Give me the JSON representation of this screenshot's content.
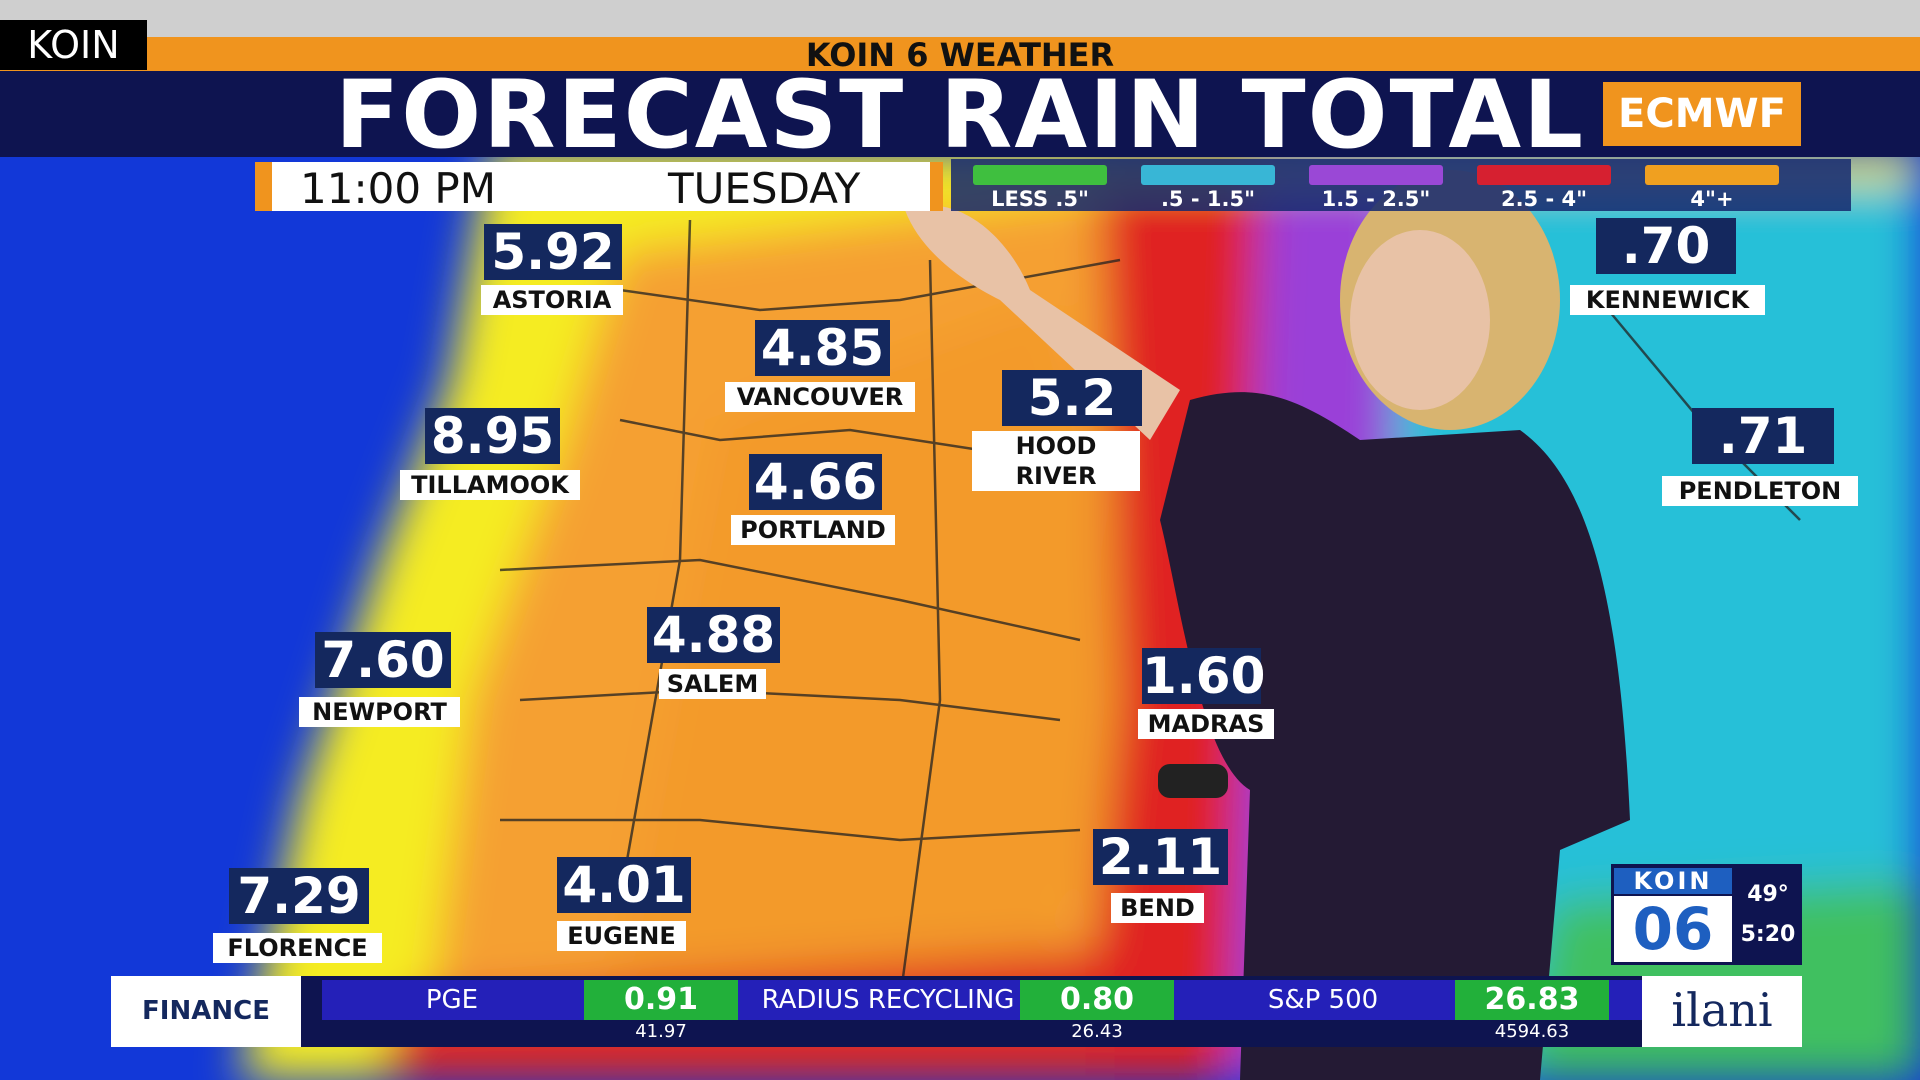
{
  "station": "KOIN",
  "header": {
    "strip": "KOIN 6 WEATHER",
    "title": "FORECAST RAIN TOTAL",
    "model": "ECMWF"
  },
  "timebar": {
    "time": "11:00 PM",
    "day": "TUESDAY"
  },
  "legend": [
    {
      "label": "LESS .5\"",
      "color": "#3fbf3f"
    },
    {
      "label": ".5 - 1.5\"",
      "color": "#38b6d6"
    },
    {
      "label": "1.5 - 2.5\"",
      "color": "#9a48d6"
    },
    {
      "label": "2.5 - 4\"",
      "color": "#d62030"
    },
    {
      "label": "4\"+",
      "color": "#f0a020"
    }
  ],
  "cities": [
    {
      "name": "ASTORIA",
      "value": "5.92"
    },
    {
      "name": "VANCOUVER",
      "value": "4.85"
    },
    {
      "name": "HOOD RIVER",
      "value": "5.2"
    },
    {
      "name": "TILLAMOOK",
      "value": "8.95"
    },
    {
      "name": "PORTLAND",
      "value": "4.66"
    },
    {
      "name": "SALEM",
      "value": "4.88"
    },
    {
      "name": "NEWPORT",
      "value": "7.60"
    },
    {
      "name": "MADRAS",
      "value": "1.60"
    },
    {
      "name": "FLORENCE",
      "value": "7.29"
    },
    {
      "name": "EUGENE",
      "value": "4.01"
    },
    {
      "name": "BEND",
      "value": "2.11"
    },
    {
      "name": "KENNEWICK",
      "value": ".70"
    },
    {
      "name": "PENDLETON",
      "value": ".71"
    }
  ],
  "ticker": {
    "section": "FINANCE",
    "items": [
      {
        "name": "PGE",
        "change": "0.91",
        "price": "41.97"
      },
      {
        "name": "RADIUS RECYCLING",
        "change": "0.80",
        "price": "26.43"
      },
      {
        "name": "S&P 500",
        "change": "26.83",
        "price": "4594.63"
      }
    ],
    "sponsor": "ilani"
  },
  "bug": {
    "brand": "KOIN",
    "channel": "06",
    "temperature": "49°",
    "clock": "5:20"
  }
}
